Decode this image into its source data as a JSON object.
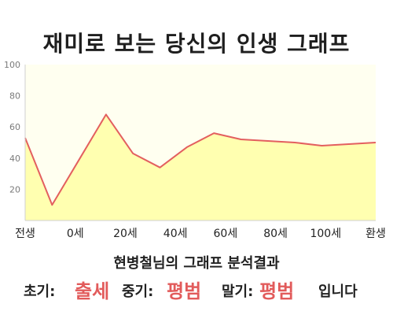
{
  "chart_data": {
    "type": "area",
    "title": "재미로 보는 당신의 인생 그래프",
    "categories": [
      "전생",
      "0세",
      "20세",
      "40세",
      "60세",
      "80세",
      "100세",
      "환생"
    ],
    "x": [
      "전생",
      "0세",
      "10세",
      "20세",
      "30세",
      "40세",
      "50세",
      "60세",
      "70세",
      "80세",
      "90세",
      "100세",
      "110세",
      "환생"
    ],
    "values": [
      53,
      10,
      39,
      68,
      43,
      34,
      47,
      56,
      52,
      51,
      50,
      48,
      49,
      50
    ],
    "yticks": [
      20,
      40,
      60,
      80,
      100
    ],
    "ylim": [
      0,
      100
    ],
    "grid": false,
    "colors": {
      "line": "#e35f5f",
      "fill": "#ffffb0",
      "bg": "#fffff0",
      "axis": "#cfcfcf",
      "tick_text": "#7a7a7a"
    }
  },
  "summary": {
    "title": "현병철님의 그래프 분석결과",
    "early_label": "초기:",
    "early_value": "출세",
    "mid_label": "중기:",
    "mid_value": "평범",
    "late_label": "말기:",
    "late_value": "평범",
    "ending": "입니다"
  }
}
